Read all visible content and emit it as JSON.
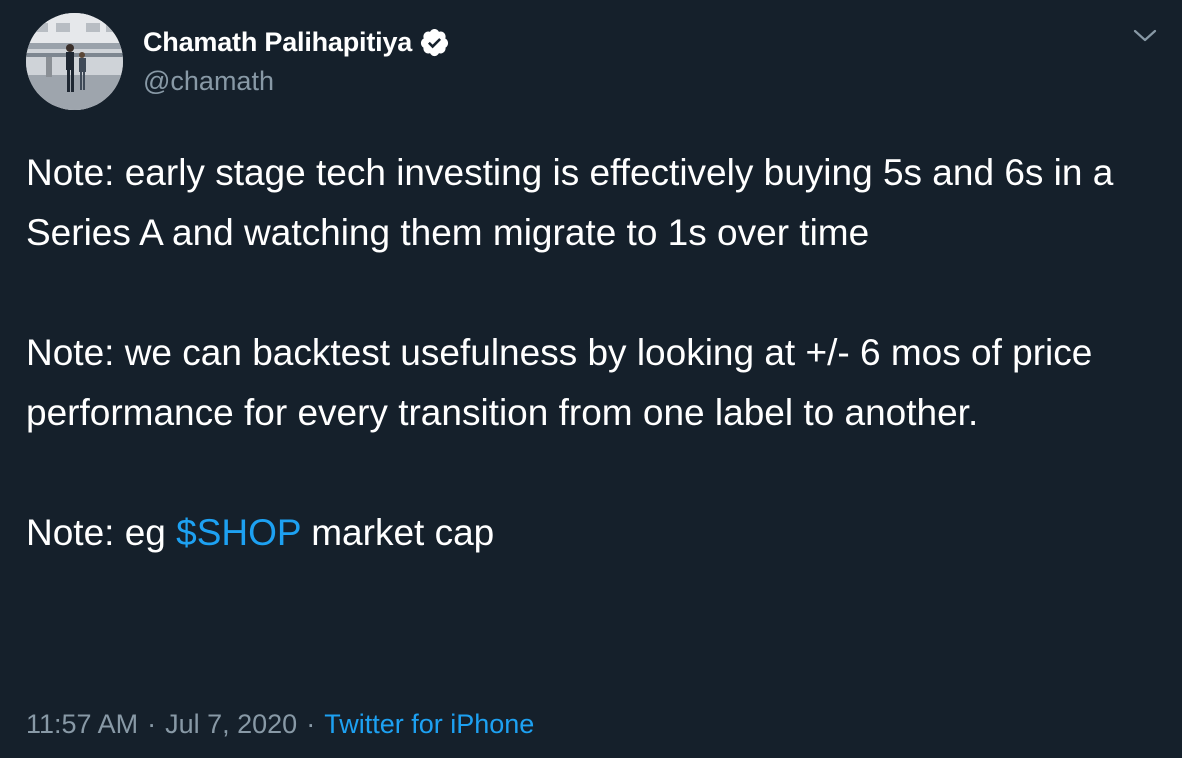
{
  "author": {
    "display_name": "Chamath Palihapitiya",
    "handle": "@chamath",
    "verified": true
  },
  "tweet": {
    "paragraphs": [
      "Note: early stage tech investing is effectively buying 5s and 6s in a Series A and watching them migrate to 1s over time",
      "Note: we can backtest usefulness by looking at +/- 6 mos of price performance for every transition from one label to another."
    ],
    "last_paragraph": {
      "prefix": "Note: eg ",
      "cashtag": "$SHOP",
      "suffix": " market cap"
    }
  },
  "meta": {
    "time": "11:57 AM",
    "separator": "·",
    "date": "Jul 7, 2020",
    "source": "Twitter for iPhone"
  },
  "icons": {
    "verified": "verified-badge-icon",
    "menu": "chevron-down-icon"
  },
  "colors": {
    "background": "#15202b",
    "text": "#ffffff",
    "secondary_text": "#8899a6",
    "link": "#1da1f2"
  }
}
